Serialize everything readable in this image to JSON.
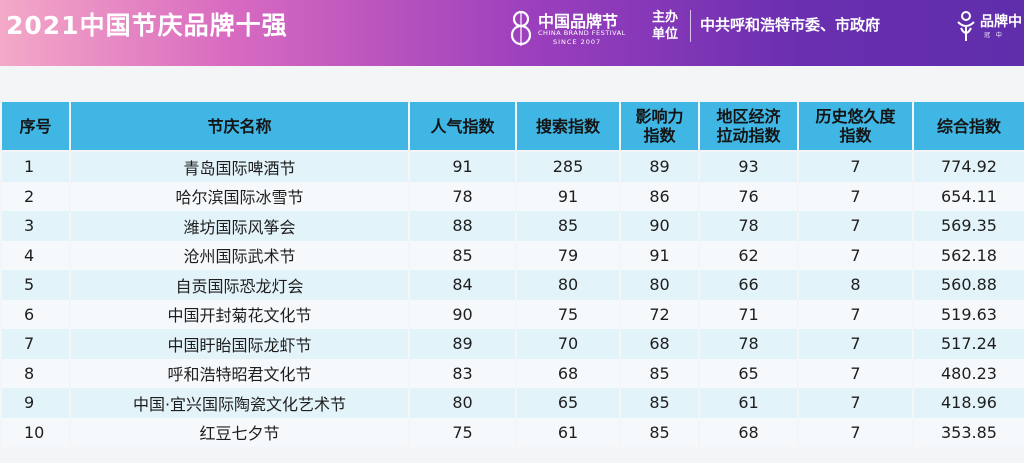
{
  "banner": {
    "title": "2021中国节庆品牌十强",
    "brand_name": "中国品牌节",
    "brand_en": "CHINA BRAND FESTIVAL",
    "brand_since": "SINCE 2007",
    "host_label_line1": "主办",
    "host_label_line2": "单位",
    "host_text": "中共呼和浩特市委、市政府",
    "right_logo_text": "品牌中",
    "right_logo_sub": "冠 中",
    "colors": {
      "gradient_start": "#f4a9c7",
      "gradient_end": "#5f2eab",
      "header_blue": "#3fb6e4"
    }
  },
  "table": {
    "columns": [
      "序号",
      "节庆名称",
      "人气指数",
      "搜索指数",
      "影响力指数",
      "地区经济拉动指数",
      "历史悠久度指数",
      "综合指数"
    ],
    "header_lines": [
      [
        "序号"
      ],
      [
        "节庆名称"
      ],
      [
        "人气指数"
      ],
      [
        "搜索指数"
      ],
      [
        "影响力",
        "指数"
      ],
      [
        "地区经济",
        "拉动指数"
      ],
      [
        "历史悠久度",
        "指数"
      ],
      [
        "综合指数"
      ]
    ],
    "rows": [
      [
        "1",
        "青岛国际啤酒节",
        "91",
        "285",
        "89",
        "93",
        "7",
        "774.92"
      ],
      [
        "2",
        "哈尔滨国际冰雪节",
        "78",
        "91",
        "86",
        "76",
        "7",
        "654.11"
      ],
      [
        "3",
        "潍坊国际风筝会",
        "88",
        "85",
        "90",
        "78",
        "7",
        "569.35"
      ],
      [
        "4",
        "沧州国际武术节",
        "85",
        "79",
        "91",
        "62",
        "7",
        "562.18"
      ],
      [
        "5",
        "自贡国际恐龙灯会",
        "84",
        "80",
        "80",
        "66",
        "8",
        "560.88"
      ],
      [
        "6",
        "中国开封菊花文化节",
        "90",
        "75",
        "72",
        "71",
        "7",
        "519.63"
      ],
      [
        "7",
        "中国盱眙国际龙虾节",
        "89",
        "70",
        "68",
        "78",
        "7",
        "517.24"
      ],
      [
        "8",
        "呼和浩特昭君文化节",
        "83",
        "68",
        "85",
        "65",
        "7",
        "480.23"
      ],
      [
        "9",
        "中国·宜兴国际陶瓷文化艺术节",
        "80",
        "65",
        "85",
        "61",
        "7",
        "418.96"
      ],
      [
        "10",
        "红豆七夕节",
        "75",
        "61",
        "85",
        "68",
        "7",
        "353.85"
      ]
    ]
  }
}
